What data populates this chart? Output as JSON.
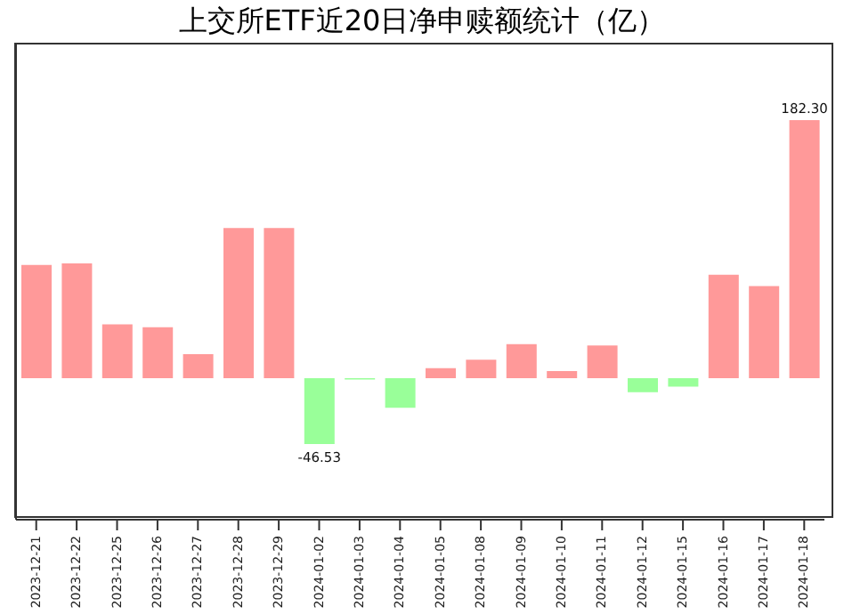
{
  "chart_data": {
    "type": "bar",
    "title": "上交所ETF近20日净申赎额统计（亿）",
    "categories": [
      "2023-12-21",
      "2023-12-22",
      "2023-12-25",
      "2023-12-26",
      "2023-12-27",
      "2023-12-28",
      "2023-12-29",
      "2024-01-02",
      "2024-01-03",
      "2024-01-04",
      "2024-01-05",
      "2024-01-08",
      "2024-01-09",
      "2024-01-10",
      "2024-01-11",
      "2024-01-12",
      "2024-01-15",
      "2024-01-16",
      "2024-01-17",
      "2024-01-18"
    ],
    "values": [
      80,
      81,
      38,
      36,
      17,
      106,
      106,
      -46.53,
      -1,
      -21,
      7,
      13,
      24,
      5,
      23,
      -10,
      -6,
      73,
      65,
      182.3
    ],
    "colors": [
      "#ff9999",
      "#ff9999",
      "#ff9999",
      "#ff9999",
      "#ff9999",
      "#ff9999",
      "#ff9999",
      "#99ff99",
      "#99ff99",
      "#99ff99",
      "#ff9999",
      "#ff9999",
      "#ff9999",
      "#ff9999",
      "#ff9999",
      "#99ff99",
      "#99ff99",
      "#ff9999",
      "#ff9999",
      "#ff9999"
    ],
    "value_labels": [
      null,
      null,
      null,
      null,
      null,
      null,
      null,
      "-46.53",
      null,
      null,
      null,
      null,
      null,
      null,
      null,
      null,
      null,
      null,
      null,
      "182.30"
    ],
    "ylim": [
      -100,
      237
    ],
    "tick_labels": "x",
    "grid": false,
    "legend": false
  }
}
